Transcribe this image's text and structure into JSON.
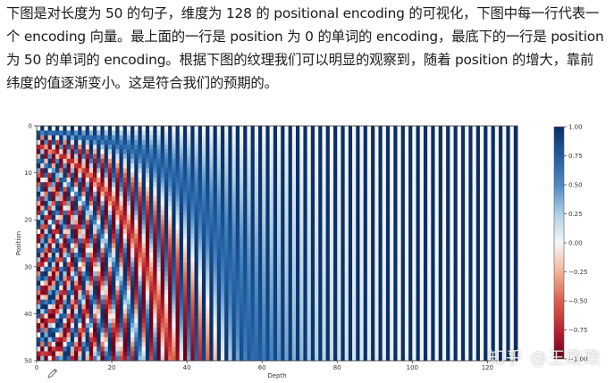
{
  "article": {
    "lines": [
      "下图是对长度为 50 的句子，维度为 128 的 positional encoding 的可视化，下图中每一行代表一",
      "个 encoding 向量。最上面的一行是 position 为 0 的单词的 encoding，最底下的一行是 position",
      "为 50 的单词的 encoding。根据下图的纹理我们可以明显的观察到，随着 position 的增大，靠前",
      "纬度的值逐渐变小。这是符合我们的预期的。"
    ]
  },
  "chart_data": {
    "type": "heatmap",
    "title": "",
    "xlabel": "Depth",
    "ylabel": "Position",
    "x_ticks": [
      "0",
      "20",
      "40",
      "60",
      "80",
      "100",
      "120"
    ],
    "x_tick_values": [
      0,
      20,
      40,
      60,
      80,
      100,
      120
    ],
    "y_ticks": [
      "0",
      "10",
      "20",
      "30",
      "40",
      "50"
    ],
    "y_tick_values": [
      0,
      10,
      20,
      30,
      40,
      50
    ],
    "xlim": [
      0,
      128
    ],
    "ylim": [
      0,
      50
    ],
    "n_positions": 50,
    "depth": 128,
    "colormap": "RdBu",
    "colorbar": {
      "ticks": [
        "1.00",
        "0.75",
        "0.50",
        "0.25",
        "0.00",
        "−0.25",
        "−0.50",
        "−0.75",
        "−1.00"
      ],
      "tick_values": [
        1.0,
        0.75,
        0.5,
        0.25,
        0.0,
        -0.25,
        -0.5,
        -0.75,
        -1.0
      ],
      "range": [
        -1,
        1
      ]
    },
    "colors": {
      "low": "#b2182b",
      "mid": "#f7f7f7",
      "high": "#1a4d8c"
    }
  },
  "watermark": {
    "text": "知乎 @王政政"
  },
  "icons": {
    "edit": "pencil-icon"
  }
}
